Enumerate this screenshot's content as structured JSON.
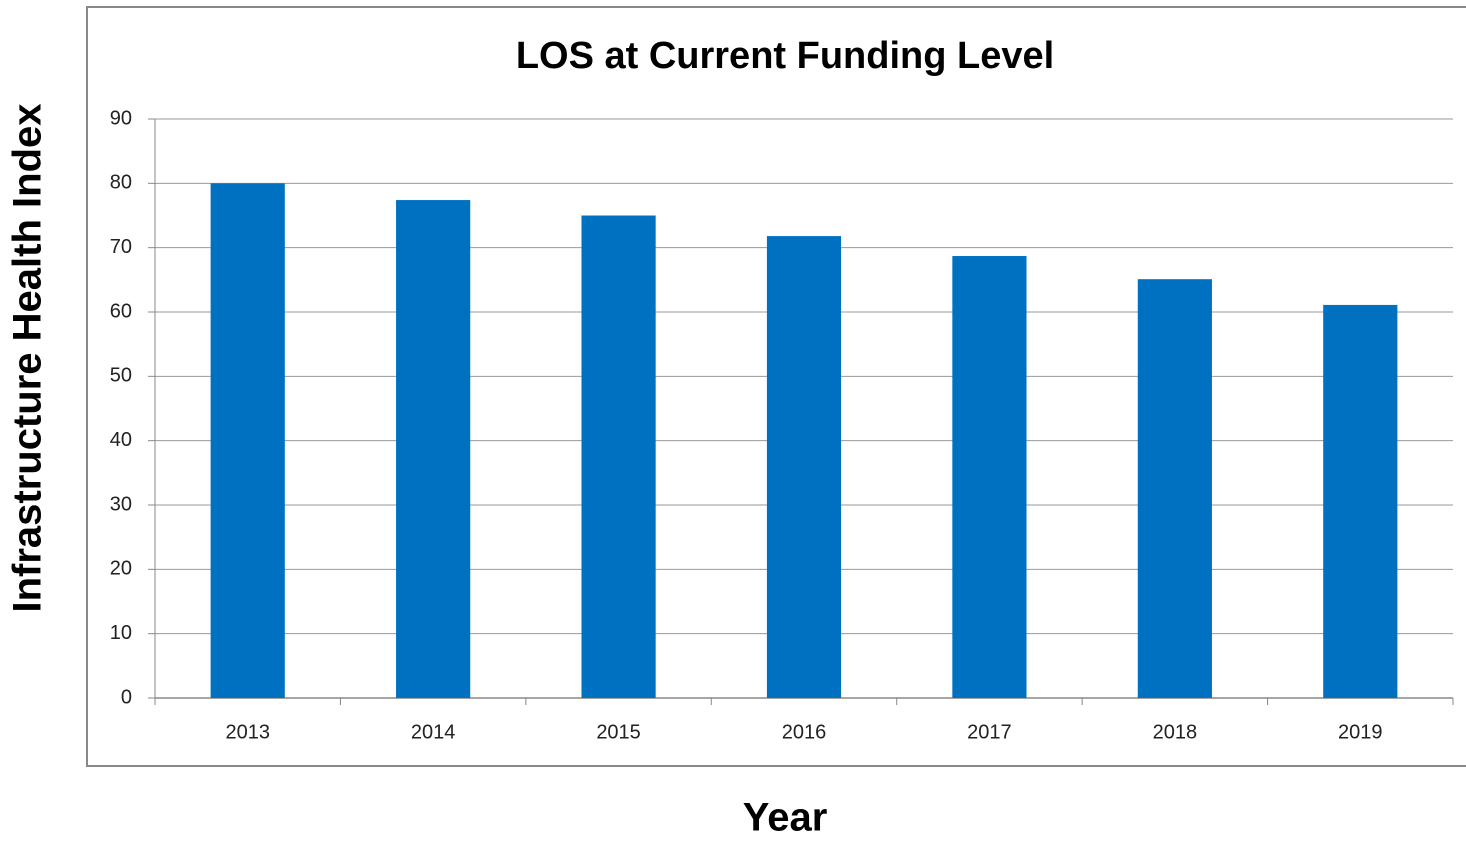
{
  "chart_data": {
    "type": "bar",
    "title": "LOS at Current Funding Level",
    "x_label": "Year",
    "y_label": "Infrastructure Health Index",
    "categories": [
      "2013",
      "2014",
      "2015",
      "2016",
      "2017",
      "2018",
      "2019"
    ],
    "values": [
      80,
      77.4,
      75,
      71.8,
      68.7,
      65.1,
      61.1
    ],
    "color": "#0070c0",
    "ylim": [
      0,
      90
    ],
    "yticks": [
      0,
      10,
      20,
      30,
      40,
      50,
      60,
      70,
      80,
      90
    ],
    "grid": true
  }
}
